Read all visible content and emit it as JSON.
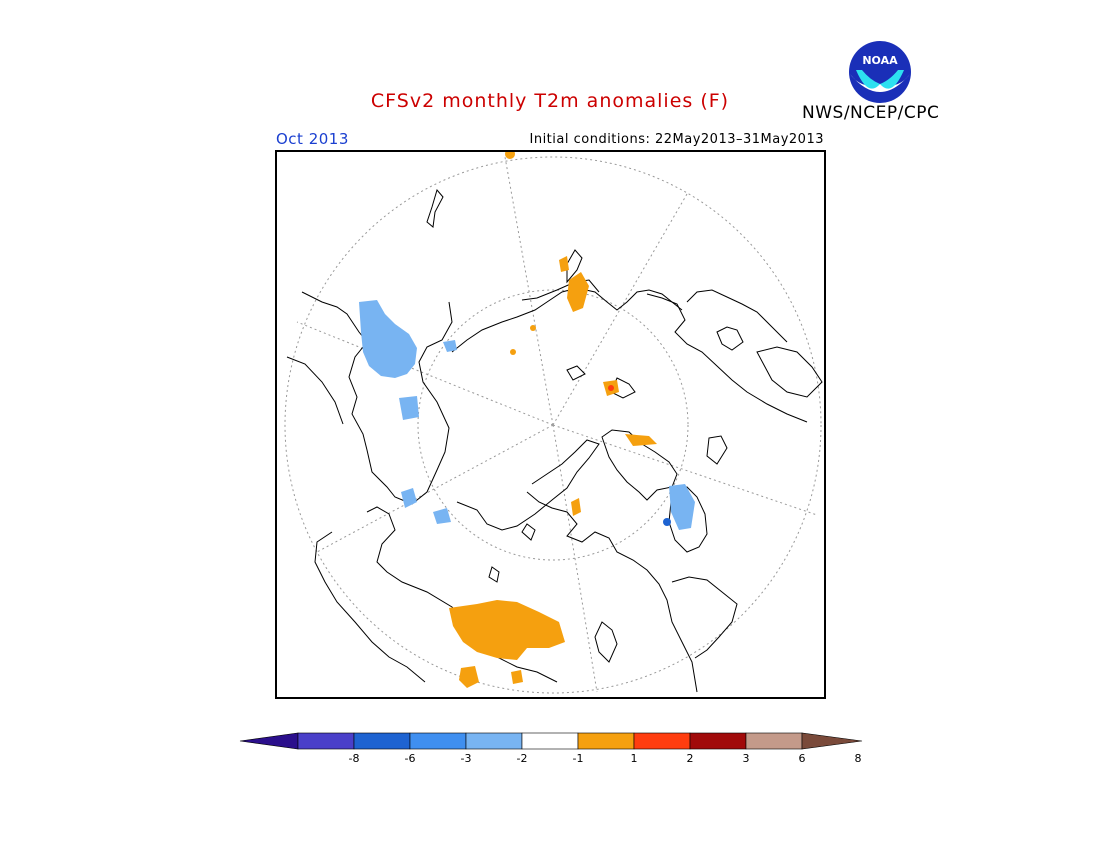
{
  "header": {
    "title": "CFSv2 monthly T2m anomalies (F)",
    "agency": "NWS/NCEP/CPC",
    "logo_text": "NOAA",
    "month": "Oct 2013",
    "initial_conditions": "Initial conditions: 22May2013–31May2013"
  },
  "colorbar": {
    "colors": [
      "#2b0f8c",
      "#4a3fc9",
      "#1e63d1",
      "#3f8ff0",
      "#78b4f2",
      "#ffffff",
      "#f5a00f",
      "#ff3d0f",
      "#a10a0a",
      "#c49a8a",
      "#7a4a3a"
    ],
    "tick_labels": [
      "-8",
      "-6",
      "-3",
      "-2",
      "-1",
      "1",
      "2",
      "3",
      "6",
      "8"
    ]
  },
  "anomaly_colors": {
    "cold": "#78b4f2",
    "cold_strong": "#1e63d1",
    "warm": "#f5a00f",
    "warm_strong": "#ff3d0f"
  }
}
